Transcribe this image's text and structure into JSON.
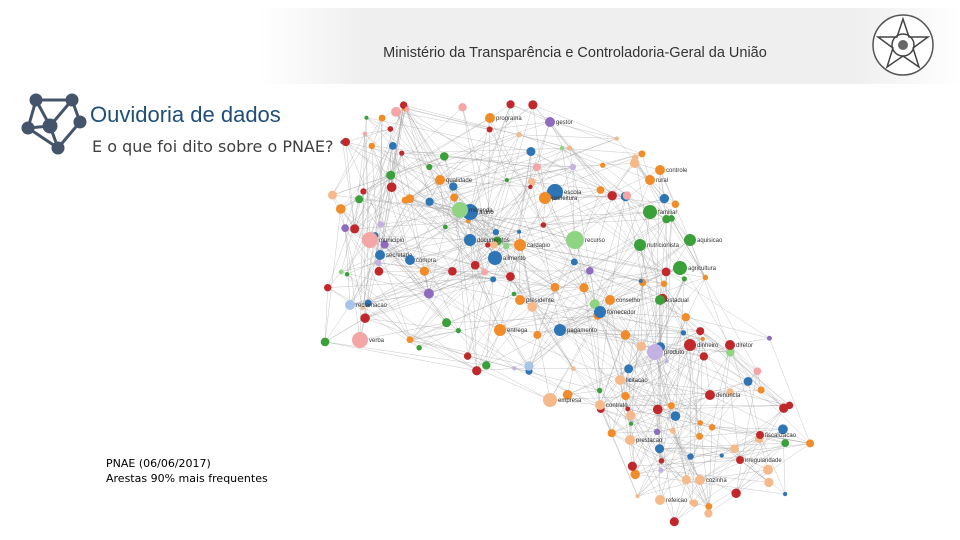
{
  "header": {
    "ministry": "Ministério da Transparência e Controladoria-Geral da União"
  },
  "slide": {
    "title": "Ouvidoria de dados",
    "subtitle": "E o que foi dito sobre o PNAE?",
    "note": [
      "PNAE (06/06/2017)",
      "Arestas 90% mais frequentes"
    ]
  },
  "network": {
    "edge_color": "#9a9a9a",
    "nodes": [
      {
        "label": "aluno",
        "color": "#2e75b6"
      },
      {
        "label": "programa",
        "color": "#f28c28"
      },
      {
        "label": "escola",
        "color": "#2e75b6"
      },
      {
        "label": "merenda",
        "color": "#90d483"
      },
      {
        "label": "prefeitura",
        "color": "#f28c28"
      },
      {
        "label": "recurso",
        "color": "#90d483"
      },
      {
        "label": "alimento",
        "color": "#2e75b6"
      },
      {
        "label": "cardapio",
        "color": "#f28c28"
      },
      {
        "label": "nutricionista",
        "color": "#3aa03a"
      },
      {
        "label": "fornecedor",
        "color": "#2e75b6"
      },
      {
        "label": "licitacao",
        "color": "#f6b98a"
      },
      {
        "label": "produto",
        "color": "#c3b1e1"
      },
      {
        "label": "agricultura",
        "color": "#3aa03a"
      },
      {
        "label": "familiar",
        "color": "#3aa03a"
      },
      {
        "label": "controle",
        "color": "#f28c28"
      },
      {
        "label": "conselho",
        "color": "#f28c28"
      },
      {
        "label": "gestor",
        "color": "#8e6bbf"
      },
      {
        "label": "presidente",
        "color": "#f28c28"
      },
      {
        "label": "secretaria",
        "color": "#2e75b6"
      },
      {
        "label": "municipio",
        "color": "#f4a6a6"
      },
      {
        "label": "verba",
        "color": "#f4a6a6"
      },
      {
        "label": "compra",
        "color": "#2e75b6"
      },
      {
        "label": "qualidade",
        "color": "#f28c28"
      },
      {
        "label": "empresa",
        "color": "#f6b98a"
      },
      {
        "label": "contrato",
        "color": "#f6b98a"
      },
      {
        "label": "denuncia",
        "color": "#c0282b"
      },
      {
        "label": "fiscalizacao",
        "color": "#c0282b"
      },
      {
        "label": "irregularidade",
        "color": "#c0282b"
      },
      {
        "label": "estadual",
        "color": "#3aa03a"
      },
      {
        "label": "rural",
        "color": "#f28c28"
      },
      {
        "label": "pagamento",
        "color": "#2e75b6"
      },
      {
        "label": "documentos",
        "color": "#2e75b6"
      },
      {
        "label": "dinheiro",
        "color": "#c0282b"
      },
      {
        "label": "aquisicao",
        "color": "#3aa03a"
      },
      {
        "label": "entrega",
        "color": "#f28c28"
      },
      {
        "label": "diretor",
        "color": "#c0282b"
      },
      {
        "label": "prestacao",
        "color": "#f6b98a"
      },
      {
        "label": "reclamacao",
        "color": "#a9c4e8"
      },
      {
        "label": "refeicao",
        "color": "#f6b98a"
      },
      {
        "label": "cozinha",
        "color": "#f6b98a"
      }
    ]
  }
}
